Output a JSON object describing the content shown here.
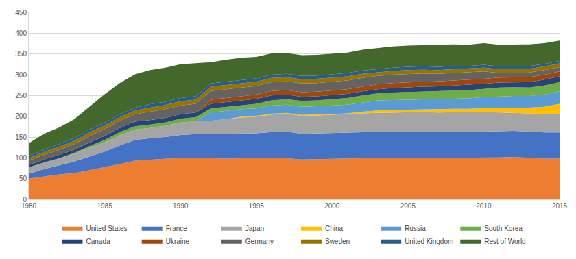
{
  "chart_data": {
    "type": "area",
    "stacked": true,
    "grid": true,
    "legend": "bottom",
    "x": [
      1980,
      1981,
      1982,
      1983,
      1984,
      1985,
      1986,
      1987,
      1988,
      1989,
      1990,
      1991,
      1992,
      1993,
      1994,
      1995,
      1996,
      1997,
      1998,
      1999,
      2000,
      2001,
      2002,
      2003,
      2004,
      2005,
      2006,
      2007,
      2008,
      2009,
      2010,
      2011,
      2012,
      2013,
      2014,
      2015
    ],
    "xlim": [
      1980,
      2015
    ],
    "xticks": [
      1980,
      1985,
      1990,
      1995,
      2000,
      2005,
      2010,
      2015
    ],
    "ylim": [
      0,
      450
    ],
    "yticks": [
      0,
      50,
      100,
      150,
      200,
      250,
      300,
      350,
      400,
      450
    ],
    "series": [
      {
        "name": "United States",
        "color": "#ed7d31",
        "values": [
          50,
          55,
          60,
          63,
          70,
          78,
          85,
          93,
          95,
          98,
          100,
          100,
          99,
          98,
          99,
          99,
          100,
          99,
          96,
          97,
          98,
          98,
          99,
          99,
          100,
          100,
          100,
          99,
          100,
          100,
          100,
          101,
          102,
          100,
          98,
          98
        ]
      },
      {
        "name": "France",
        "color": "#4472c4",
        "values": [
          12,
          18,
          22,
          28,
          33,
          37,
          45,
          50,
          52,
          52,
          55,
          57,
          58,
          60,
          60,
          60,
          62,
          64,
          62,
          62,
          62,
          62,
          62,
          63,
          63,
          63,
          63,
          63,
          63,
          63,
          63,
          63,
          63,
          63,
          63,
          63
        ]
      },
      {
        "name": "Japan",
        "color": "#a5a5a5",
        "values": [
          15,
          16,
          17,
          19,
          21,
          22,
          24,
          25,
          25,
          27,
          30,
          31,
          32,
          35,
          38,
          40,
          42,
          43,
          43,
          43,
          44,
          45,
          46,
          46,
          46,
          47,
          47,
          47,
          47,
          47,
          47,
          45,
          44,
          44,
          44,
          44
        ]
      },
      {
        "name": "China",
        "color": "#ffc000",
        "values": [
          0,
          0,
          0,
          0,
          0,
          0,
          0,
          0,
          0,
          0,
          0,
          0,
          0,
          0,
          2,
          2,
          2,
          2,
          2,
          2,
          2,
          2,
          4,
          6,
          6,
          6,
          6,
          8,
          8,
          8,
          10,
          12,
          12,
          14,
          18,
          25
        ]
      },
      {
        "name": "Russia",
        "color": "#5b9bd5",
        "values": [
          0,
          0,
          0,
          0,
          0,
          0,
          0,
          0,
          0,
          0,
          0,
          0,
          20,
          20,
          18,
          18,
          20,
          20,
          20,
          20,
          20,
          21,
          22,
          24,
          24,
          24,
          24,
          24,
          25,
          25,
          26,
          27,
          28,
          28,
          29,
          30
        ]
      },
      {
        "name": "South Korea",
        "color": "#70ad47",
        "values": [
          0,
          0,
          0,
          2,
          4,
          6,
          8,
          8,
          8,
          8,
          9,
          10,
          10,
          10,
          10,
          11,
          12,
          13,
          14,
          14,
          15,
          16,
          17,
          17,
          18,
          18,
          19,
          19,
          19,
          20,
          20,
          21,
          21,
          20,
          22,
          22
        ]
      },
      {
        "name": "Canada",
        "color": "#264478",
        "values": [
          6,
          7,
          8,
          8,
          9,
          10,
          10,
          11,
          11,
          11,
          11,
          11,
          11,
          11,
          12,
          12,
          12,
          11,
          10,
          10,
          10,
          10,
          10,
          10,
          11,
          12,
          12,
          12,
          12,
          12,
          12,
          12,
          12,
          13,
          14,
          14
        ]
      },
      {
        "name": "Ukraine",
        "color": "#9e480e",
        "values": [
          0,
          0,
          0,
          0,
          0,
          0,
          0,
          0,
          0,
          0,
          0,
          0,
          10,
          10,
          10,
          10,
          11,
          11,
          11,
          11,
          11,
          11,
          11,
          12,
          12,
          12,
          12,
          12,
          12,
          12,
          12,
          12,
          12,
          12,
          12,
          12
        ]
      },
      {
        "name": "Germany",
        "color": "#636363",
        "values": [
          10,
          11,
          12,
          13,
          15,
          16,
          17,
          18,
          20,
          21,
          21,
          21,
          21,
          21,
          21,
          21,
          21,
          21,
          21,
          21,
          21,
          21,
          21,
          20,
          20,
          20,
          20,
          18,
          18,
          18,
          18,
          11,
          11,
          11,
          11,
          10
        ]
      },
      {
        "name": "Sweden",
        "color": "#997300",
        "values": [
          6,
          7,
          8,
          8,
          9,
          9,
          9,
          9,
          10,
          10,
          10,
          10,
          10,
          10,
          10,
          10,
          10,
          10,
          10,
          10,
          10,
          10,
          10,
          9,
          9,
          9,
          9,
          9,
          9,
          9,
          9,
          9,
          9,
          9,
          9,
          9
        ]
      },
      {
        "name": "United Kingdom",
        "color": "#255e91",
        "values": [
          6,
          6,
          6,
          7,
          7,
          7,
          7,
          7,
          8,
          8,
          8,
          8,
          8,
          8,
          8,
          8,
          8,
          8,
          8,
          8,
          8,
          8,
          8,
          8,
          8,
          8,
          8,
          8,
          8,
          7,
          7,
          7,
          7,
          7,
          6,
          6
        ]
      },
      {
        "name": "Rest of World",
        "color": "#43682b",
        "values": [
          30,
          38,
          40,
          45,
          55,
          68,
          75,
          80,
          82,
          82,
          81,
          80,
          51,
          53,
          53,
          52,
          51,
          50,
          50,
          50,
          49,
          49,
          50,
          50,
          51,
          51,
          51,
          52,
          52,
          51,
          52,
          52,
          52,
          52,
          50,
          49
        ]
      }
    ]
  }
}
